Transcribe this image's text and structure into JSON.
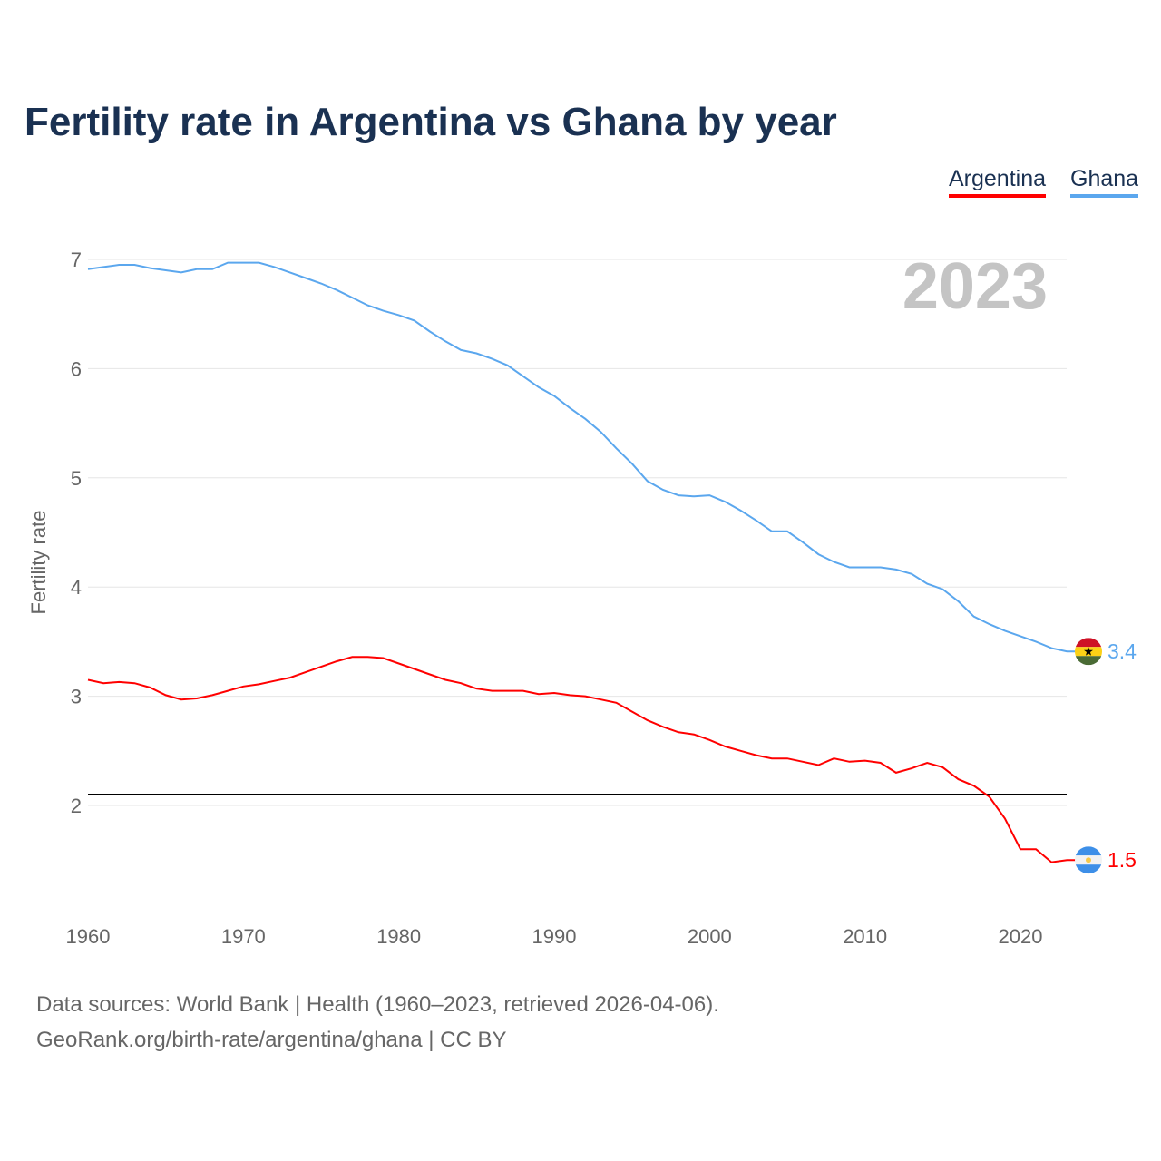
{
  "chart_data": {
    "type": "line",
    "title": "Fertility rate in Argentina vs Ghana by year",
    "xlabel": "",
    "ylabel": "Fertility rate",
    "xlim": [
      1960,
      2023
    ],
    "ylim": [
      1.2,
      7.2
    ],
    "x_ticks": [
      1960,
      1970,
      1980,
      1990,
      2000,
      2010,
      2020
    ],
    "y_ticks": [
      2,
      3,
      4,
      5,
      6,
      7
    ],
    "grid": true,
    "legend_position": "top-right",
    "year_label": "2023",
    "reference_line": 2.1,
    "x": [
      1960,
      1961,
      1962,
      1963,
      1964,
      1965,
      1966,
      1967,
      1968,
      1969,
      1970,
      1971,
      1972,
      1973,
      1974,
      1975,
      1976,
      1977,
      1978,
      1979,
      1980,
      1981,
      1982,
      1983,
      1984,
      1985,
      1986,
      1987,
      1988,
      1989,
      1990,
      1991,
      1992,
      1993,
      1994,
      1995,
      1996,
      1997,
      1998,
      1999,
      2000,
      2001,
      2002,
      2003,
      2004,
      2005,
      2006,
      2007,
      2008,
      2009,
      2010,
      2011,
      2012,
      2013,
      2014,
      2015,
      2016,
      2017,
      2018,
      2019,
      2020,
      2021,
      2022,
      2023
    ],
    "series": [
      {
        "name": "Argentina",
        "color": "#ff0000",
        "end_label": "1.5",
        "flag": "argentina-flag",
        "values": [
          3.15,
          3.12,
          3.13,
          3.12,
          3.08,
          3.01,
          2.97,
          2.98,
          3.01,
          3.05,
          3.09,
          3.11,
          3.14,
          3.17,
          3.22,
          3.27,
          3.32,
          3.36,
          3.36,
          3.35,
          3.3,
          3.25,
          3.2,
          3.15,
          3.12,
          3.07,
          3.05,
          3.05,
          3.05,
          3.02,
          3.03,
          3.01,
          3.0,
          2.97,
          2.94,
          2.86,
          2.78,
          2.72,
          2.67,
          2.65,
          2.6,
          2.54,
          2.5,
          2.46,
          2.43,
          2.43,
          2.4,
          2.37,
          2.43,
          2.4,
          2.41,
          2.39,
          2.3,
          2.34,
          2.39,
          2.35,
          2.24,
          2.18,
          2.08,
          1.88,
          1.6,
          1.6,
          1.48,
          1.5
        ]
      },
      {
        "name": "Ghana",
        "color": "#5ba7ee",
        "end_label": "3.4",
        "flag": "ghana-flag",
        "values": [
          6.91,
          6.93,
          6.95,
          6.95,
          6.92,
          6.9,
          6.88,
          6.91,
          6.91,
          6.97,
          6.97,
          6.97,
          6.93,
          6.88,
          6.83,
          6.78,
          6.72,
          6.65,
          6.58,
          6.53,
          6.49,
          6.44,
          6.34,
          6.25,
          6.17,
          6.14,
          6.09,
          6.03,
          5.93,
          5.83,
          5.75,
          5.64,
          5.54,
          5.42,
          5.27,
          5.13,
          4.97,
          4.89,
          4.84,
          4.83,
          4.84,
          4.78,
          4.7,
          4.61,
          4.51,
          4.51,
          4.41,
          4.3,
          4.23,
          4.18,
          4.18,
          4.18,
          4.16,
          4.12,
          4.03,
          3.98,
          3.87,
          3.73,
          3.66,
          3.6,
          3.55,
          3.5,
          3.44,
          3.41
        ]
      }
    ]
  },
  "source": {
    "line1": "Data sources: World Bank | Health (1960–2023, retrieved 2026-04-06).",
    "line2": "GeoRank.org/birth-rate/argentina/ghana | CC BY"
  }
}
